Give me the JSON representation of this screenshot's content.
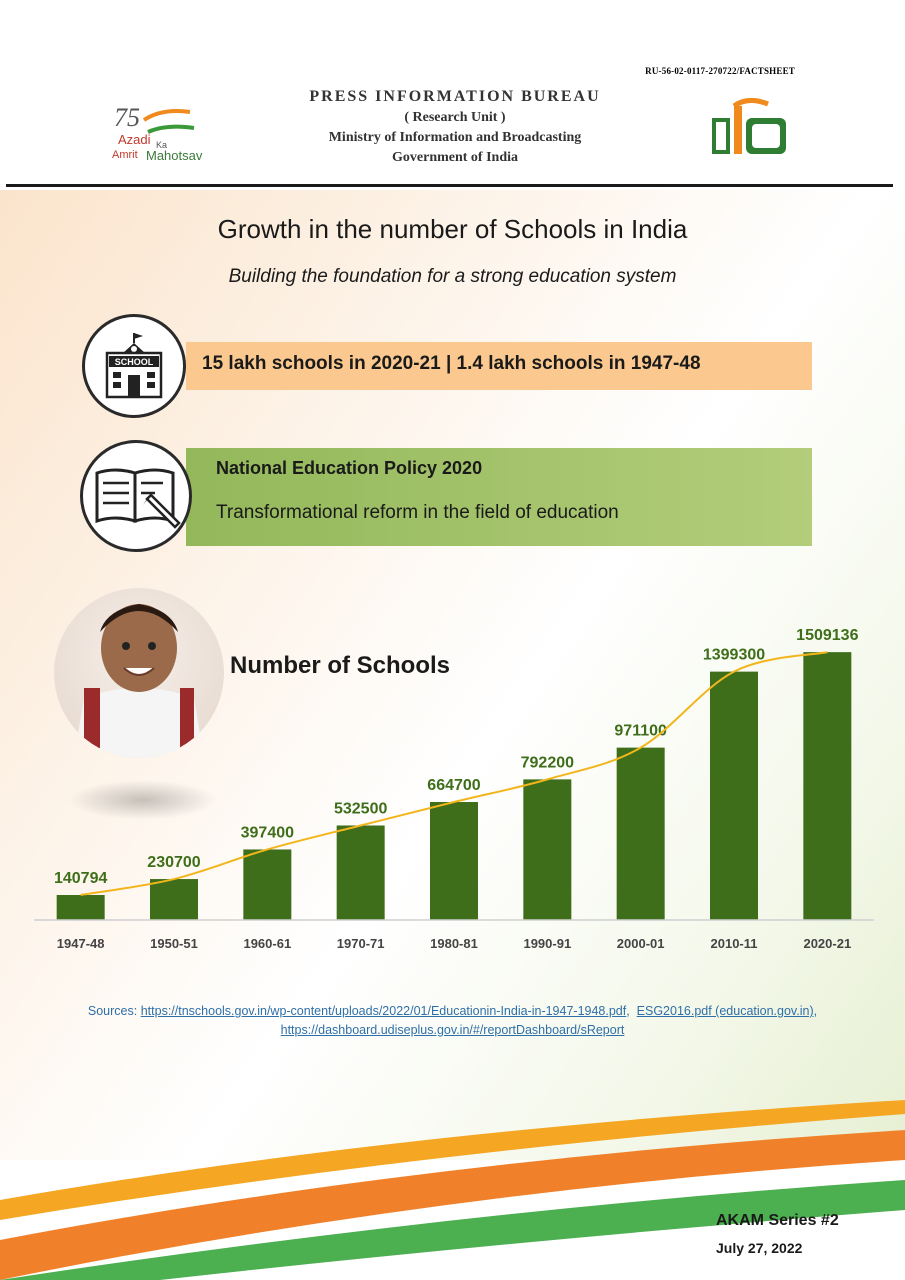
{
  "header": {
    "ref_no": "RU-56-02-0117-270722/FACTSHEET",
    "bureau": "PRESS INFORMATION BUREAU",
    "unit": "( Research Unit )",
    "ministry": "Ministry of Information and Broadcasting",
    "government": "Government of India",
    "akam_logo": {
      "line1": "Azadi",
      "ka": "Ka",
      "line2": "Amrit",
      "line3": "Mahotsav",
      "number": "75"
    }
  },
  "title": "Growth in the number of Schools in India",
  "subtitle": "Building the foundation for a strong education system",
  "highlights": {
    "schools_text": "15 lakh schools in 2020-21 | 1.4 lakh schools in 1947-48",
    "school_icon_label": "SCHOOL",
    "nep_title": "National Education Policy 2020",
    "nep_text": "Transformational reform in the field of education"
  },
  "chart_data": {
    "type": "bar",
    "title": "Number of Schools",
    "categories": [
      "1947-48",
      "1950-51",
      "1960-61",
      "1970-71",
      "1980-81",
      "1990-91",
      "2000-01",
      "2010-11",
      "2020-21"
    ],
    "values": [
      140794,
      230700,
      397400,
      532500,
      664700,
      792200,
      971100,
      1399300,
      1509136
    ],
    "trendline": true,
    "ylim": [
      0,
      1600000
    ],
    "colors": {
      "bar": "#3f6e1a",
      "label": "#3f6e1a",
      "trend": "#f2b61c"
    }
  },
  "sources": {
    "prefix": "Sources:",
    "link1": "https://tnschools.gov.in/wp-content/uploads/2022/01/Educationin-India-in-1947-1948.pdf",
    "link2": "ESG2016.pdf (education.gov.in)",
    "link3": "https://dashboard.udiseplus.gov.in/#/reportDashboard/sReport"
  },
  "footer": {
    "series": "AKAM Series #2",
    "date": "July 27, 2022"
  }
}
